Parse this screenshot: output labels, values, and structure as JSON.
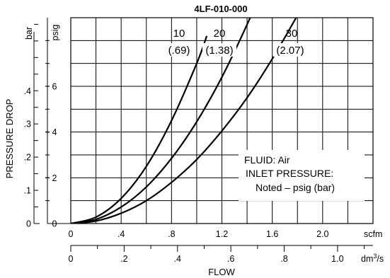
{
  "chart_data": {
    "type": "line",
    "title": "4LF-010-000",
    "ylabel": "PRESSURE DROP",
    "xlabel": "FLOW",
    "x_primary": {
      "unit": "scfm",
      "range": [
        0,
        2.4
      ],
      "ticks": [
        0,
        0.4,
        0.8,
        1.2,
        1.6,
        2.0
      ],
      "tick_labels": [
        "0",
        ".4",
        ".8",
        "1.2",
        "1.6",
        "2.0"
      ]
    },
    "x_secondary": {
      "unit_base": "dm",
      "unit_sup": "3",
      "unit_tail": "/s",
      "range": [
        0,
        1.133
      ],
      "ticks": [
        0,
        0.2,
        0.4,
        0.6,
        0.8,
        1.0
      ],
      "tick_labels": [
        "0",
        ".2",
        ".4",
        ".6",
        ".8",
        "1.0"
      ]
    },
    "y_psig": {
      "unit": "psig",
      "range": [
        0,
        9
      ],
      "ticks": [
        0,
        2,
        4,
        6
      ],
      "tick_labels": [
        "0",
        "2",
        "4",
        "6"
      ]
    },
    "y_bar": {
      "unit": "bar",
      "range": [
        0,
        0.62
      ],
      "ticks": [
        0,
        0.1,
        0.2,
        0.3,
        0.4
      ],
      "tick_labels": [
        "0",
        ".1",
        ".2",
        ".3",
        ".4"
      ]
    },
    "grid": true,
    "series": [
      {
        "name": "10 (.69)",
        "label_top": "10",
        "label_bottom": "(.69)",
        "x": [
          0,
          0.2,
          0.4,
          0.6,
          0.8,
          1.0,
          1.08
        ],
        "y": [
          0,
          0.28,
          1.1,
          2.5,
          4.5,
          7.0,
          8.2
        ]
      },
      {
        "name": "20 (1.38)",
        "label_top": "20",
        "label_bottom": "(1.38)",
        "x": [
          0,
          0.2,
          0.4,
          0.6,
          0.8,
          1.0,
          1.2,
          1.4,
          1.5
        ],
        "y": [
          0,
          0.18,
          0.72,
          1.6,
          2.85,
          4.45,
          6.4,
          8.7,
          10.0
        ]
      },
      {
        "name": "30 (2.07)",
        "label_top": "30",
        "label_bottom": "(2.07)",
        "x": [
          0,
          0.2,
          0.4,
          0.6,
          0.8,
          1.0,
          1.2,
          1.4,
          1.6,
          1.8
        ],
        "y": [
          0,
          0.11,
          0.45,
          1.0,
          1.8,
          2.8,
          4.05,
          5.5,
          7.2,
          9.1
        ]
      }
    ],
    "annotation": [
      "FLUID: Air",
      "INLET PRESSURE:",
      "Noted – psig (bar)"
    ]
  }
}
